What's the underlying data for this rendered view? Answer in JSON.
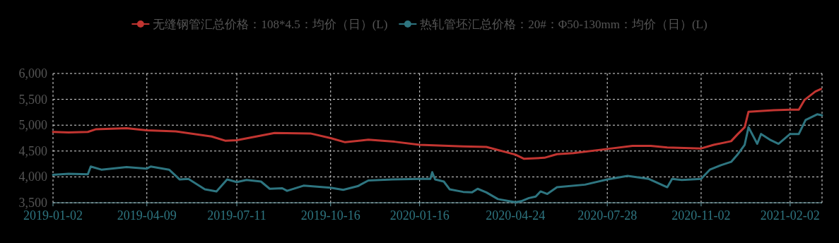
{
  "chart_data": {
    "type": "line",
    "xlim": [
      "2019-01-02",
      "2021-03-07"
    ],
    "xticks": [
      "2019-01-02",
      "2019-04-09",
      "2019-07-11",
      "2019-10-16",
      "2020-01-16",
      "2020-04-24",
      "2020-07-28",
      "2020-11-02",
      "2021-02-02"
    ],
    "ylim": [
      3500,
      6000
    ],
    "yticks": [
      {
        "value": 3500,
        "label": "3,500"
      },
      {
        "value": 4000,
        "label": "4,000"
      },
      {
        "value": 4500,
        "label": "4,500"
      },
      {
        "value": 5000,
        "label": "5,000"
      },
      {
        "value": 5500,
        "label": "5,500"
      },
      {
        "value": 6000,
        "label": "6,000"
      }
    ],
    "grid": true,
    "legend": "top",
    "series": [
      {
        "name": "无缝钢管汇总价格：108*4.5：均价（日）(L)",
        "color": "#c23531",
        "x": [
          "2019-01-02",
          "2019-01-18",
          "2019-02-07",
          "2019-02-15",
          "2019-03-19",
          "2019-04-09",
          "2019-05-09",
          "2019-06-15",
          "2019-06-29",
          "2019-07-11",
          "2019-08-19",
          "2019-09-25",
          "2019-10-16",
          "2019-10-31",
          "2019-11-24",
          "2019-12-21",
          "2020-01-16",
          "2020-03-01",
          "2020-03-25",
          "2020-04-24",
          "2020-05-03",
          "2020-05-24",
          "2020-06-06",
          "2020-06-23",
          "2020-07-28",
          "2020-08-23",
          "2020-09-11",
          "2020-09-28",
          "2020-11-02",
          "2020-11-15",
          "2020-12-03",
          "2020-12-10",
          "2020-12-17",
          "2020-12-21",
          "2021-01-16",
          "2021-02-02",
          "2021-02-11",
          "2021-02-17",
          "2021-02-28",
          "2021-03-06"
        ],
        "values": [
          4870,
          4860,
          4870,
          4920,
          4940,
          4900,
          4880,
          4780,
          4700,
          4710,
          4850,
          4840,
          4750,
          4670,
          4720,
          4680,
          4620,
          4590,
          4580,
          4430,
          4350,
          4370,
          4440,
          4460,
          4540,
          4600,
          4600,
          4570,
          4550,
          4620,
          4690,
          4830,
          4960,
          5260,
          5290,
          5300,
          5300,
          5490,
          5650,
          5700
        ]
      },
      {
        "name": "热轧管坯汇总价格：20#：Φ50-130mm：均价（日）(L)",
        "color": "#2e7580",
        "x": [
          "2019-01-02",
          "2019-01-18",
          "2019-02-07",
          "2019-02-10",
          "2019-02-21",
          "2019-03-19",
          "2019-04-09",
          "2019-04-13",
          "2019-05-02",
          "2019-05-13",
          "2019-05-22",
          "2019-06-08",
          "2019-06-20",
          "2019-07-01",
          "2019-07-11",
          "2019-07-21",
          "2019-08-05",
          "2019-08-14",
          "2019-08-27",
          "2019-09-01",
          "2019-09-18",
          "2019-10-16",
          "2019-10-29",
          "2019-11-13",
          "2019-11-24",
          "2019-12-19",
          "2020-01-16",
          "2020-01-27",
          "2020-01-29",
          "2020-02-01",
          "2020-02-10",
          "2020-02-16",
          "2020-03-01",
          "2020-03-10",
          "2020-03-16",
          "2020-03-25",
          "2020-04-06",
          "2020-04-24",
          "2020-04-30",
          "2020-05-08",
          "2020-05-15",
          "2020-05-20",
          "2020-05-27",
          "2020-06-06",
          "2020-07-05",
          "2020-07-28",
          "2020-08-18",
          "2020-09-09",
          "2020-09-28",
          "2020-10-03",
          "2020-10-13",
          "2020-11-02",
          "2020-11-11",
          "2020-11-23",
          "2020-12-03",
          "2020-12-10",
          "2020-12-17",
          "2020-12-21",
          "2020-12-30",
          "2021-01-03",
          "2021-01-13",
          "2021-01-21",
          "2021-02-02",
          "2021-02-11",
          "2021-02-18",
          "2021-03-02",
          "2021-03-07"
        ],
        "values": [
          4040,
          4060,
          4050,
          4200,
          4140,
          4190,
          4160,
          4200,
          4140,
          3950,
          3960,
          3760,
          3720,
          3950,
          3900,
          3940,
          3910,
          3770,
          3780,
          3730,
          3830,
          3790,
          3750,
          3820,
          3930,
          3950,
          3960,
          3960,
          4090,
          3950,
          3910,
          3760,
          3710,
          3700,
          3770,
          3700,
          3570,
          3510,
          3530,
          3590,
          3620,
          3720,
          3670,
          3800,
          3850,
          3950,
          4020,
          3960,
          3800,
          3960,
          3940,
          3960,
          4140,
          4230,
          4290,
          4440,
          4620,
          4960,
          4640,
          4830,
          4710,
          4640,
          4830,
          4830,
          5100,
          5210,
          5190
        ]
      }
    ]
  }
}
